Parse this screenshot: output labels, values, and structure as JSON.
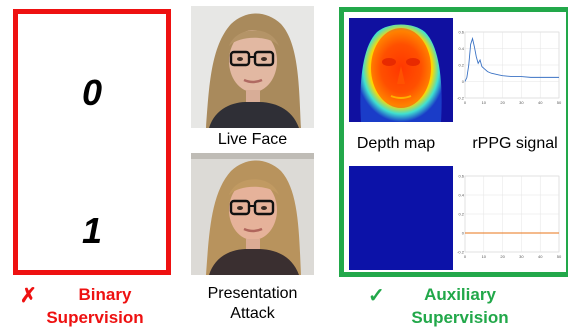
{
  "binary": {
    "label_0": "0",
    "label_1": "1",
    "mark": "✗",
    "title_line1": "Binary",
    "title_line2": "Supervision",
    "color": "#ee1111"
  },
  "faces": {
    "live_label": "Live Face",
    "attack_label_line1": "Presentation",
    "attack_label_line2": "Attack"
  },
  "auxiliary": {
    "mark": "✓",
    "title_line1": "Auxiliary",
    "title_line2": "Supervision",
    "color": "#22a84a",
    "depth_label": "Depth map",
    "rppg_label": "rPPG signal"
  },
  "chart_data": [
    {
      "type": "line",
      "x": [
        0,
        1,
        2,
        3,
        4,
        5,
        6,
        7,
        8,
        9,
        10,
        12,
        14,
        16,
        18,
        20,
        25,
        30,
        35,
        40,
        45,
        50
      ],
      "series": [
        {
          "values": [
            0.0,
            0.05,
            0.2,
            0.45,
            0.52,
            0.42,
            0.3,
            0.22,
            0.26,
            0.18,
            0.16,
            0.12,
            0.1,
            0.09,
            0.08,
            0.07,
            0.06,
            0.06,
            0.05,
            0.05,
            0.05,
            0.05
          ]
        }
      ],
      "xlim": [
        0,
        50
      ],
      "ylim": [
        -0.2,
        0.6
      ],
      "x_ticks": [
        "0",
        "10",
        "20",
        "30",
        "40",
        "50"
      ],
      "y_ticks": [
        "-0.2",
        "0",
        "0.2",
        "0.4",
        "0.6"
      ],
      "grid": true,
      "color": "#3a72c4"
    },
    {
      "type": "line",
      "x": [
        0,
        50
      ],
      "series": [
        {
          "values": [
            0,
            0
          ]
        }
      ],
      "xlim": [
        0,
        50
      ],
      "ylim": [
        -0.2,
        0.6
      ],
      "x_ticks": [
        "0",
        "10",
        "20",
        "30",
        "40",
        "50"
      ],
      "y_ticks": [
        "-0.2",
        "0",
        "0.2",
        "0.4",
        "0.6"
      ],
      "grid": true,
      "color": "#e8751a"
    }
  ]
}
